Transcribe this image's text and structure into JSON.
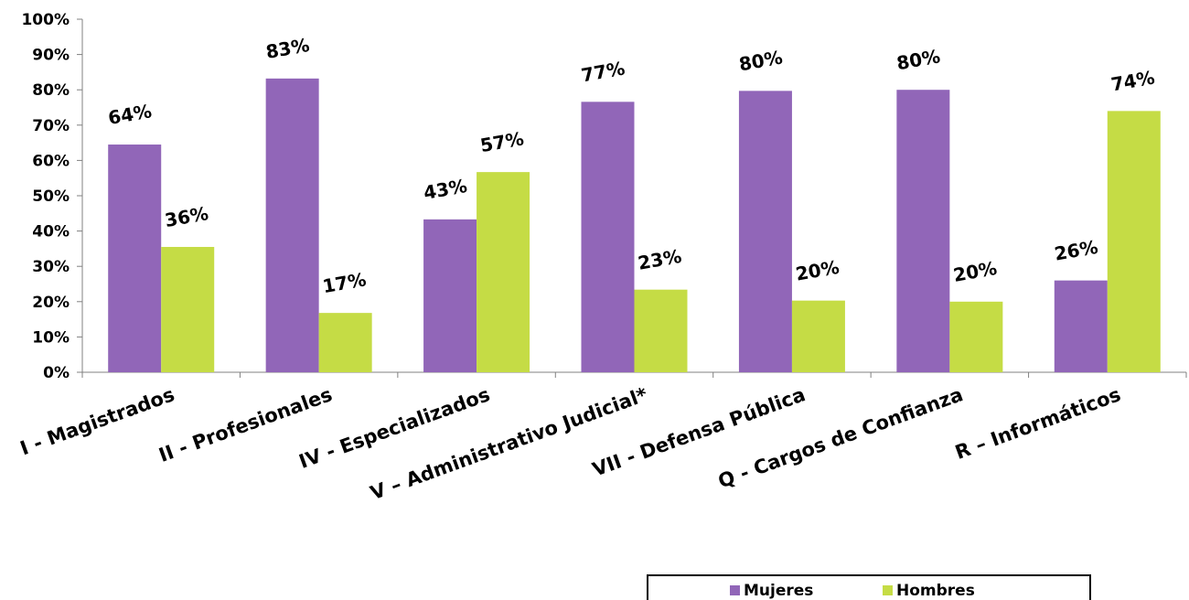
{
  "chart_data": {
    "type": "bar",
    "categories": [
      "I - Magistrados",
      "II - Profesionales",
      "IV - Especializados",
      "V – Administrativo Judicial*",
      "VII - Defensa Pública",
      "Q - Cargos de Confianza",
      "R – Informáticos"
    ],
    "series": [
      {
        "name": "Mujeres",
        "color": "#9166b8",
        "values": [
          64.5,
          83.2,
          43.3,
          76.6,
          79.7,
          80.0,
          26.0
        ],
        "labels": [
          "64%",
          "83%",
          "43%",
          "77%",
          "80%",
          "80%",
          "26%"
        ]
      },
      {
        "name": "Hombres",
        "color": "#c5dc45",
        "values": [
          35.5,
          16.8,
          56.7,
          23.4,
          20.3,
          20.0,
          74.0
        ],
        "labels": [
          "36%",
          "17%",
          "57%",
          "23%",
          "20%",
          "20%",
          "74%"
        ]
      }
    ],
    "ylim": [
      0,
      100
    ],
    "yticks": [
      "0%",
      "10%",
      "20%",
      "30%",
      "40%",
      "50%",
      "60%",
      "70%",
      "80%",
      "90%",
      "100%"
    ],
    "title": "",
    "xlabel": "",
    "ylabel": "",
    "grid": false,
    "legend": {
      "position": "bottom-right"
    }
  }
}
